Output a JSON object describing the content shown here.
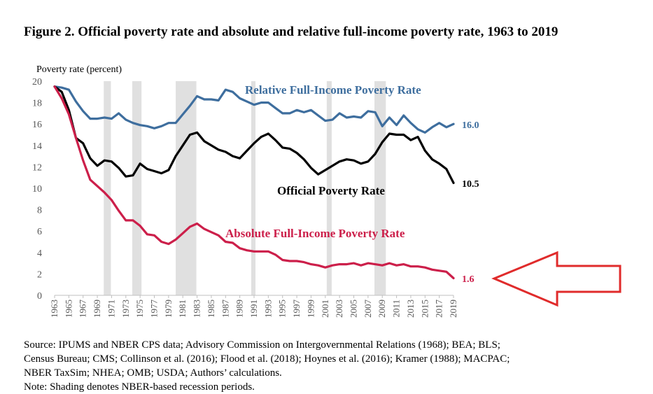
{
  "figure": {
    "title": "Figure 2. Official poverty rate and absolute and relative full-income poverty rate, 1963 to 2019",
    "source_lines": [
      "Source: IPUMS and NBER CPS data; Advisory Commission on Intergovernmental Relations (1968); BEA; BLS;",
      "Census Bureau; CMS; Collinson et al. (2016); Flood et al. (2018); Hoynes et al. (2016); Kramer (1988); MACPAC;",
      "NBER TaxSim; NHEA; OMB; USDA; Authors’ calculations.",
      "Note: Shading denotes NBER-based recession periods."
    ]
  },
  "chart_data": {
    "type": "line",
    "title": "Figure 2. Official poverty rate and absolute and relative full-income poverty rate, 1963 to 2019",
    "ylabel": "Poverty rate (percent)",
    "xlabel": "",
    "ylim": [
      0,
      20
    ],
    "yticks": [
      0,
      2,
      4,
      6,
      8,
      10,
      12,
      14,
      16,
      18,
      20
    ],
    "x": [
      1963,
      1964,
      1965,
      1966,
      1967,
      1968,
      1969,
      1970,
      1971,
      1972,
      1973,
      1974,
      1975,
      1976,
      1977,
      1978,
      1979,
      1980,
      1981,
      1982,
      1983,
      1984,
      1985,
      1986,
      1987,
      1988,
      1989,
      1990,
      1991,
      1992,
      1993,
      1994,
      1995,
      1996,
      1997,
      1998,
      1999,
      2000,
      2001,
      2002,
      2003,
      2004,
      2005,
      2006,
      2007,
      2008,
      2009,
      2010,
      2011,
      2012,
      2013,
      2014,
      2015,
      2016,
      2017,
      2018,
      2019
    ],
    "xtick_labels": [
      "1963",
      "1965",
      "1967",
      "1969",
      "1971",
      "1973",
      "1975",
      "1977",
      "1979",
      "1981",
      "1983",
      "1985",
      "1987",
      "1989",
      "1991",
      "1993",
      "1995",
      "1997",
      "1999",
      "2001",
      "2003",
      "2005",
      "2007",
      "2009",
      "2011",
      "2013",
      "2015",
      "2017",
      "2019"
    ],
    "recessions": [
      [
        1969.9,
        1970.9
      ],
      [
        1973.9,
        1975.2
      ],
      [
        1980.0,
        1982.9
      ],
      [
        1990.6,
        1991.2
      ],
      [
        2001.2,
        2001.9
      ],
      [
        2007.9,
        2009.5
      ]
    ],
    "grid": false,
    "series": [
      {
        "name": "Relative Full-Income Poverty Rate",
        "color": "#3e6e9e",
        "end_label": "16.0",
        "values": [
          19.5,
          19.4,
          19.2,
          18.1,
          17.2,
          16.5,
          16.5,
          16.6,
          16.5,
          17.0,
          16.4,
          16.1,
          15.9,
          15.8,
          15.6,
          15.8,
          16.1,
          16.1,
          16.9,
          17.7,
          18.6,
          18.3,
          18.3,
          18.2,
          19.2,
          19.0,
          18.4,
          18.1,
          17.8,
          18.0,
          18.0,
          17.5,
          17.0,
          17.0,
          17.3,
          17.1,
          17.3,
          16.8,
          16.3,
          16.4,
          17.0,
          16.6,
          16.7,
          16.6,
          17.2,
          17.1,
          15.8,
          16.6,
          15.9,
          16.8,
          16.1,
          15.5,
          15.2,
          15.7,
          16.1,
          15.7,
          16.0
        ]
      },
      {
        "name": "Official Poverty Rate",
        "color": "#000000",
        "end_label": "10.5",
        "values": [
          19.5,
          19.0,
          17.3,
          14.7,
          14.2,
          12.8,
          12.1,
          12.6,
          12.5,
          11.9,
          11.1,
          11.2,
          12.3,
          11.8,
          11.6,
          11.4,
          11.7,
          13.0,
          14.0,
          15.0,
          15.2,
          14.4,
          14.0,
          13.6,
          13.4,
          13.0,
          12.8,
          13.5,
          14.2,
          14.8,
          15.1,
          14.5,
          13.8,
          13.7,
          13.3,
          12.7,
          11.9,
          11.3,
          11.7,
          12.1,
          12.5,
          12.7,
          12.6,
          12.3,
          12.5,
          13.2,
          14.3,
          15.1,
          15.0,
          15.0,
          14.5,
          14.8,
          13.5,
          12.7,
          12.3,
          11.8,
          10.5
        ]
      },
      {
        "name": "Absolute Full-Income Poverty Rate",
        "color": "#cc1f4a",
        "end_label": "1.6",
        "values": [
          19.5,
          18.4,
          16.9,
          14.7,
          12.6,
          10.8,
          10.2,
          9.6,
          8.9,
          7.9,
          7.0,
          7.0,
          6.5,
          5.7,
          5.6,
          5.0,
          4.8,
          5.2,
          5.8,
          6.4,
          6.7,
          6.2,
          5.9,
          5.6,
          5.0,
          4.9,
          4.4,
          4.2,
          4.1,
          4.1,
          4.1,
          3.8,
          3.3,
          3.2,
          3.2,
          3.1,
          2.9,
          2.8,
          2.6,
          2.8,
          2.9,
          2.9,
          3.0,
          2.8,
          3.0,
          2.9,
          2.8,
          3.0,
          2.8,
          2.9,
          2.7,
          2.7,
          2.6,
          2.4,
          2.3,
          2.2,
          1.6
        ]
      }
    ]
  }
}
